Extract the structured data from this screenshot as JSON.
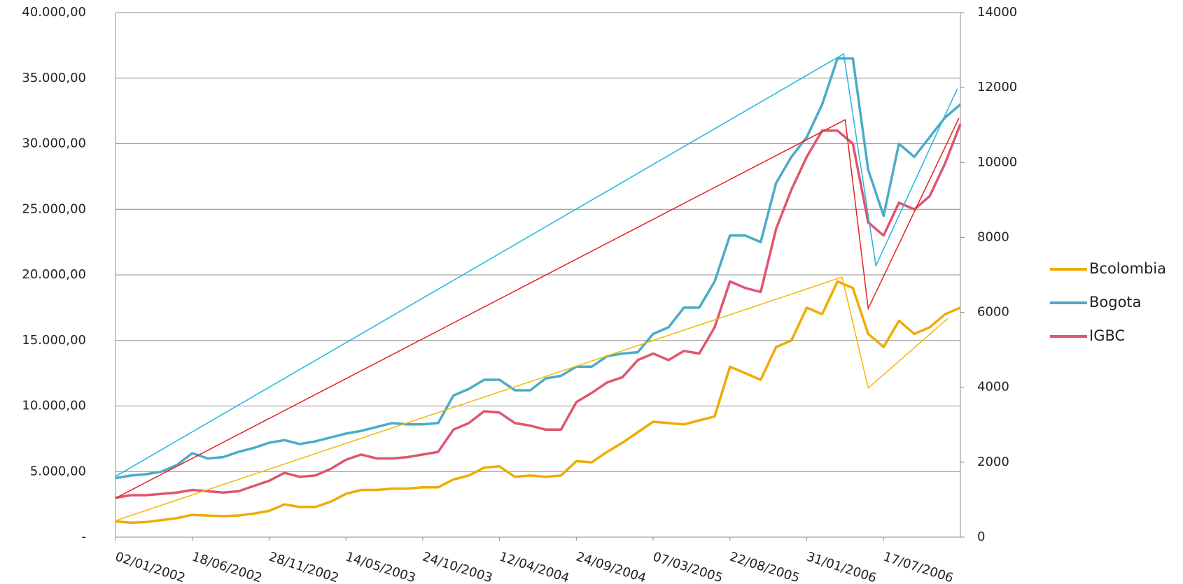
{
  "chart_data": {
    "type": "line",
    "categories": [
      "02/01/2002",
      null,
      null,
      null,
      null,
      "18/06/2002",
      null,
      null,
      null,
      null,
      "28/11/2002",
      null,
      null,
      null,
      null,
      "14/05/2003",
      null,
      null,
      null,
      null,
      "24/10/2003",
      null,
      null,
      null,
      null,
      "12/04/2004",
      null,
      null,
      null,
      null,
      "24/09/2004",
      null,
      null,
      null,
      null,
      "07/03/2005",
      null,
      null,
      null,
      null,
      "22/08/2005",
      null,
      null,
      null,
      null,
      "31/01/2006",
      null,
      null,
      null,
      null,
      "17/07/2006",
      null,
      null,
      null,
      null,
      null
    ],
    "ylim": [
      0,
      40000
    ],
    "yticks": [
      {
        "value": 0,
        "label": "-"
      },
      {
        "value": 5000,
        "label": "5.000,00"
      },
      {
        "value": 10000,
        "label": "10.000,00"
      },
      {
        "value": 15000,
        "label": "15.000,00"
      },
      {
        "value": 20000,
        "label": "20.000,00"
      },
      {
        "value": 25000,
        "label": "25.000,00"
      },
      {
        "value": 30000,
        "label": "30.000,00"
      },
      {
        "value": 35000,
        "label": "35.000,00"
      },
      {
        "value": 40000,
        "label": "40.000,00"
      }
    ],
    "y2lim": [
      0,
      14000
    ],
    "y2ticks": [
      0,
      2000,
      4000,
      6000,
      8000,
      10000,
      12000,
      14000
    ],
    "grid": true,
    "legend": "right",
    "series": [
      {
        "name": "Bcolombia",
        "color": "#f0ab00",
        "values": [
          1200,
          1100,
          1150,
          1300,
          1450,
          1700,
          1650,
          1600,
          1650,
          1800,
          2000,
          2500,
          2300,
          2300,
          2700,
          3300,
          3600,
          3600,
          3700,
          3700,
          3800,
          3800,
          4400,
          4700,
          5300,
          5400,
          4600,
          4700,
          4600,
          4700,
          5800,
          5700,
          6500,
          7200,
          8000,
          8800,
          8700,
          8600,
          8900,
          9200,
          13000,
          12500,
          12000,
          14500,
          15000,
          17500,
          17000,
          19500,
          19000,
          15500,
          14500,
          16500,
          15500,
          16000,
          17000,
          17500
        ],
        "trend": {
          "color": "#f5b800",
          "x": [
            0,
            47.3,
            49.0,
            54.2
          ],
          "values": [
            1260,
            19830,
            11370,
            16690
          ]
        }
      },
      {
        "name": "Bogota",
        "color": "#4bacc6",
        "values": [
          4500,
          4700,
          4800,
          5000,
          5500,
          6400,
          6000,
          6100,
          6500,
          6800,
          7200,
          7400,
          7100,
          7300,
          7600,
          7900,
          8100,
          8400,
          8700,
          8600,
          8600,
          8700,
          10800,
          11300,
          12000,
          12000,
          11200,
          11200,
          12100,
          12300,
          13000,
          13000,
          13800,
          14000,
          14100,
          15500,
          16000,
          17500,
          17500,
          19500,
          23000,
          23000,
          22500,
          27000,
          29000,
          30500,
          33000,
          36500,
          36500,
          28000,
          24500,
          30000,
          29000,
          30500,
          32000,
          33000
        ],
        "trend": {
          "color": "#1fb8e0",
          "x": [
            0,
            47.4,
            49.5,
            54.8
          ],
          "values": [
            4630,
            36850,
            20700,
            34200
          ]
        }
      },
      {
        "name": "IGBC",
        "color": "#e0556f",
        "axis": "y2",
        "values": [
          1050,
          1120,
          1120,
          1155,
          1190,
          1260,
          1225,
          1190,
          1225,
          1365,
          1505,
          1715,
          1610,
          1645,
          1820,
          2065,
          2205,
          2100,
          2100,
          2135,
          2205,
          2275,
          2870,
          3045,
          3360,
          3325,
          3045,
          2975,
          2870,
          2870,
          3605,
          3850,
          4130,
          4270,
          4725,
          4900,
          4725,
          4970,
          4900,
          5600,
          6825,
          6650,
          6545,
          8225,
          9275,
          10150,
          10850,
          10850,
          10500,
          8400,
          8050,
          8925,
          8750,
          9100,
          9975,
          11025
        ],
        "trend": {
          "color": "#e82020",
          "x": [
            0,
            47.5,
            49.0,
            54.9
          ],
          "values": [
            1040,
            11140,
            6100,
            11180
          ]
        }
      }
    ]
  }
}
